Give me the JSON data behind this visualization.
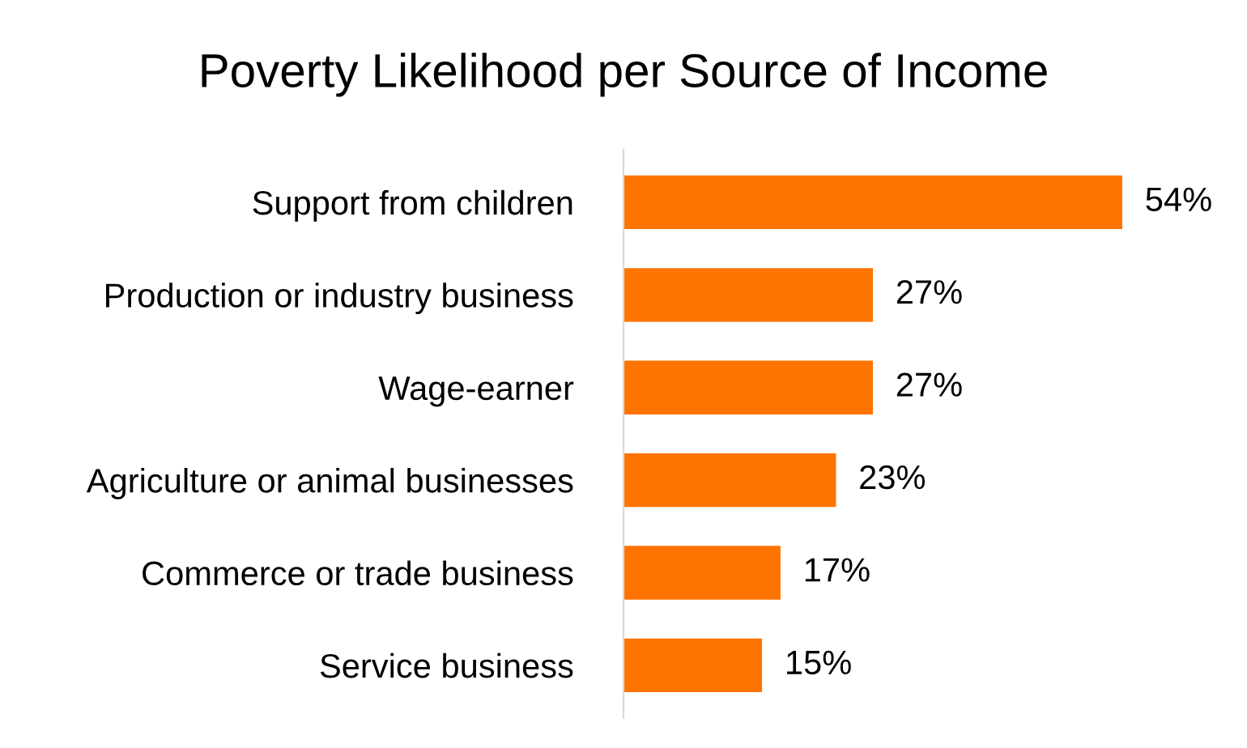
{
  "chart_data": {
    "type": "bar",
    "orientation": "horizontal",
    "title": "Poverty Likelihood per Source of Income",
    "categories": [
      "Support from children",
      "Production or industry business",
      "Wage-earner",
      "Agriculture or animal businesses",
      "Commerce or trade business",
      "Service business"
    ],
    "values": [
      54,
      27,
      27,
      23,
      17,
      15
    ],
    "value_labels": [
      "54%",
      "27%",
      "27%",
      "23%",
      "17%",
      "15%"
    ],
    "color": "#ff7300",
    "grid": false,
    "legend": false
  }
}
